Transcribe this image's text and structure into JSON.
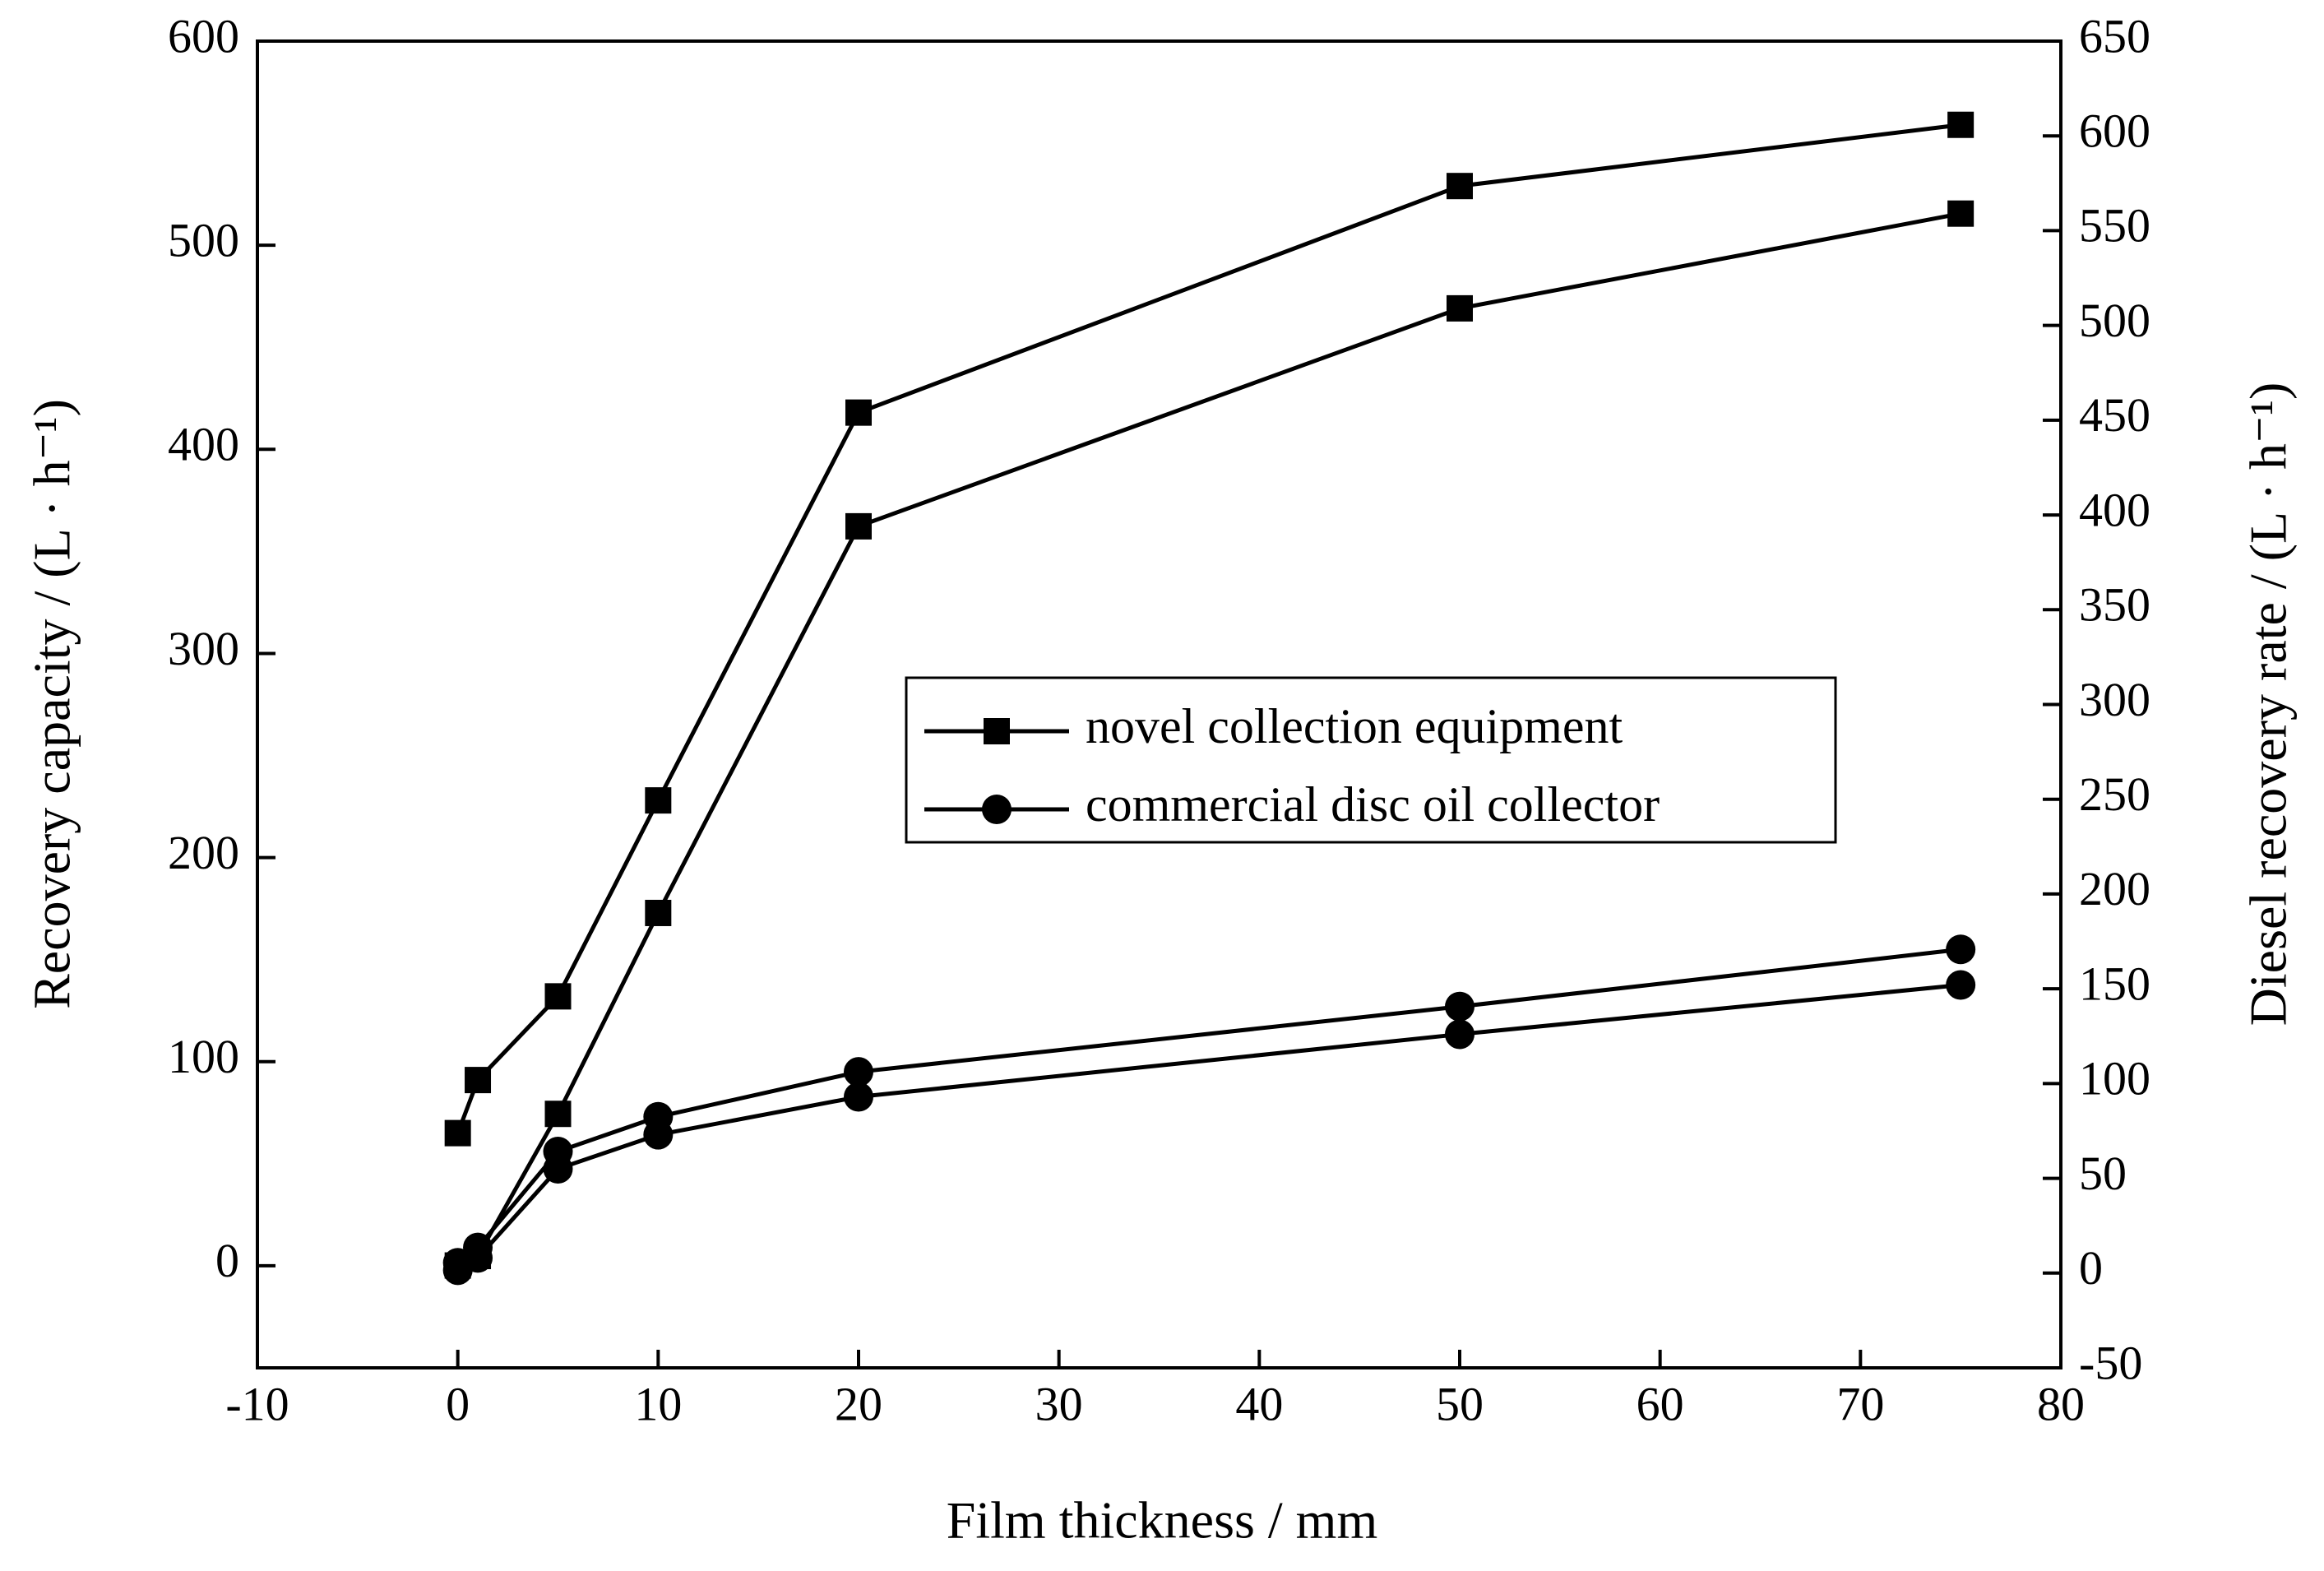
{
  "chart_data": {
    "type": "line",
    "x_label": "Film thickness / mm",
    "y_label": "Recovery capacity / (L · h⁻¹)",
    "y2_label": "Diesel recovery rate / (L · h⁻¹)",
    "x": [
      0,
      1,
      5,
      10,
      20,
      50,
      75
    ],
    "xlim": [
      -10,
      80
    ],
    "xticks": [
      -10,
      0,
      10,
      20,
      30,
      40,
      50,
      60,
      70,
      80
    ],
    "ylim": [
      -50,
      600
    ],
    "yticks": [
      0,
      100,
      200,
      300,
      400,
      500,
      600
    ],
    "y2lim": [
      -50,
      650
    ],
    "y2ticks": [
      -50,
      0,
      50,
      100,
      150,
      200,
      250,
      300,
      350,
      400,
      450,
      500,
      550,
      600,
      650
    ],
    "legend": "center-right",
    "series": [
      {
        "name": "novel collection equipment",
        "color": "#000000",
        "marker": "square",
        "values": [
          65,
          91,
          132,
          228,
          418,
          529,
          559
        ]
      },
      {
        "name": "commercial disc oil collector",
        "color": "#000000",
        "marker": "circle",
        "values": [
          1.5,
          9,
          56,
          73,
          95,
          127,
          155
        ]
      },
      {
        "name": "novel collection equipment",
        "color": "#000000",
        "marker": "square",
        "axis": "y2",
        "values": [
          4,
          9,
          84,
          190,
          394,
          509,
          559
        ]
      },
      {
        "name": "commercial disc oil collector",
        "color": "#000000",
        "marker": "circle",
        "axis": "y2",
        "values": [
          1.5,
          8,
          55,
          73,
          93,
          126,
          152
        ]
      }
    ]
  }
}
